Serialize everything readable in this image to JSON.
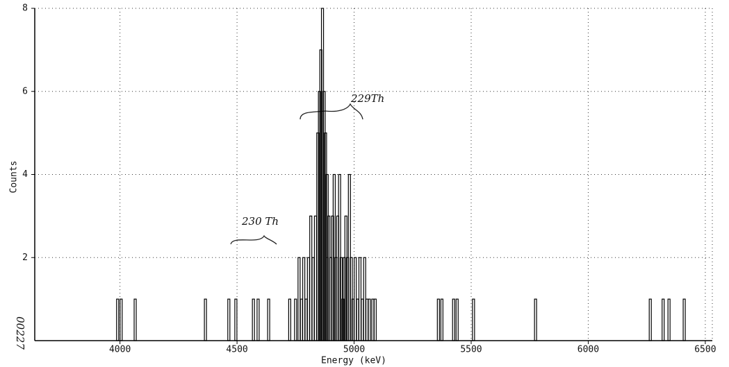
{
  "chart_data": {
    "type": "bar",
    "xlabel": "Energy (keV)",
    "ylabel": "Counts",
    "annotations": [
      "229Th",
      "230 Th",
      "00227"
    ],
    "x": [
      3990,
      4005,
      4065,
      4365,
      4465,
      4495,
      4570,
      4590,
      4635,
      4725,
      4750,
      4765,
      4775,
      4785,
      4795,
      4805,
      4815,
      4825,
      4835,
      4845,
      4852,
      4858,
      4865,
      4872,
      4878,
      4885,
      4892,
      4900,
      4908,
      4915,
      4922,
      4930,
      4938,
      4945,
      4952,
      4958,
      4965,
      4972,
      4980,
      4988,
      4995,
      5005,
      5015,
      5025,
      5035,
      5045,
      5055,
      5065,
      5080,
      5090,
      5360,
      5375,
      5425,
      5440,
      5510,
      5775,
      6265,
      6320,
      6345,
      6410
    ],
    "values": [
      1,
      1,
      1,
      1,
      1,
      1,
      1,
      1,
      1,
      1,
      1,
      2,
      1,
      2,
      1,
      2,
      3,
      2,
      3,
      5,
      6,
      7,
      8,
      6,
      5,
      4,
      3,
      2,
      3,
      4,
      2,
      3,
      4,
      2,
      1,
      2,
      3,
      2,
      4,
      2,
      1,
      2,
      1,
      2,
      1,
      2,
      1,
      1,
      1,
      1,
      1,
      1,
      1,
      1,
      1,
      1,
      1,
      1,
      1,
      1
    ],
    "color": "#000000",
    "xlim": [
      3636,
      6530
    ],
    "xticks": [
      4000,
      4500,
      5000,
      5500,
      6000,
      6500
    ],
    "ylim": [
      0,
      8
    ],
    "yticks": [
      2,
      4,
      6,
      8
    ],
    "grid": true
  }
}
